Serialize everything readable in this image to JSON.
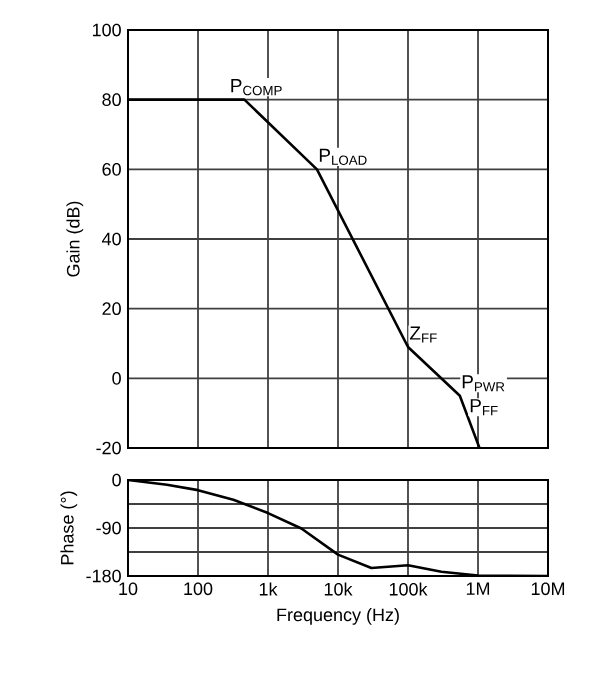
{
  "chart_data": [
    {
      "type": "line",
      "ylabel": "Gain (dB)",
      "log": "x",
      "grid": true,
      "tick_labels": "y",
      "xlim": [
        10,
        10000000
      ],
      "ylim": [
        -20,
        100
      ],
      "xticks": [
        {
          "value": 10,
          "label": null
        },
        {
          "value": 100,
          "label": null
        },
        {
          "value": 1000,
          "label": null
        },
        {
          "value": 10000,
          "label": null
        },
        {
          "value": 100000,
          "label": null
        },
        {
          "value": 1000000,
          "label": null
        },
        {
          "value": 10000000,
          "label": null
        }
      ],
      "yticks": [
        -20,
        0,
        20,
        40,
        60,
        80,
        100
      ],
      "series": [
        {
          "color": "#000000",
          "x": [
            10,
            460,
            5000,
            100000,
            550000,
            1050000
          ],
          "values": [
            80,
            80,
            60,
            9,
            -5,
            -20
          ]
        }
      ],
      "annotations": [
        {
          "text": "P$_{COMP}$",
          "x": 460,
          "y": 80
        },
        {
          "text": "P$_{LOAD}$",
          "x": 5000,
          "y": 60
        },
        {
          "text": "Z$_{FF}$",
          "x": 100000,
          "y": 9
        },
        {
          "text": "P$_{PWR}$",
          "x": 550000,
          "y": -5
        },
        {
          "text": "P$_{FF}$",
          "x": 550000,
          "y": -5
        }
      ]
    },
    {
      "type": "line",
      "ylabel": "Phase (°)",
      "xlabel": "Frequency (Hz)",
      "log": "x",
      "grid": true,
      "xlim": [
        10,
        10000000
      ],
      "ylim": [
        -180,
        0
      ],
      "xticks": [
        10,
        100,
        {
          "value": 1000,
          "label": "1k"
        },
        {
          "value": 10000,
          "label": "10k"
        },
        {
          "value": 100000,
          "label": "100k"
        },
        {
          "value": 1000000,
          "label": "1M"
        },
        {
          "value": 10000000,
          "label": "10M"
        }
      ],
      "yticks": [
        {
          "value": -180,
          "label": "-180"
        },
        {
          "value": -135,
          "label": null
        },
        {
          "value": -90,
          "label": "-90"
        },
        {
          "value": -45,
          "label": null
        },
        0
      ],
      "series": [
        {
          "color": "#000000",
          "x": [
            10,
            36,
            100,
            320,
            1000,
            3000,
            10000,
            30000,
            100000,
            300000,
            1000000,
            10000000
          ],
          "values": [
            0,
            -9,
            -19,
            -37,
            -62,
            -91,
            -140,
            -165,
            -160,
            -172,
            -179,
            -180
          ]
        }
      ]
    }
  ]
}
